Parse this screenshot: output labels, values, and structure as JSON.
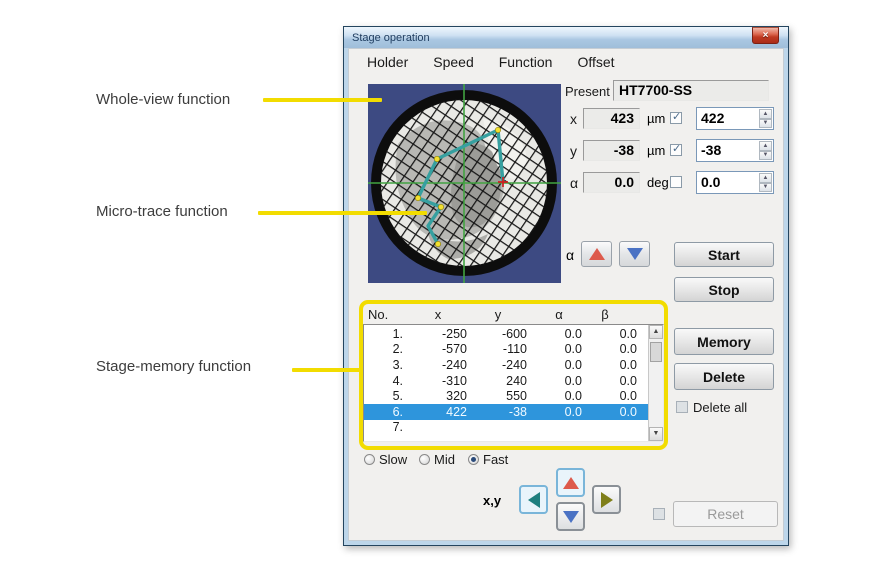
{
  "annotations": {
    "items": [
      {
        "label": "Whole-view function"
      },
      {
        "label": "Micro-trace function"
      },
      {
        "label": "Stage-memory function"
      }
    ]
  },
  "window": {
    "title": "Stage operation",
    "close_glyph": "×",
    "menu": {
      "items": [
        "Holder",
        "Speed",
        "Function",
        "Offset"
      ]
    },
    "present": {
      "label": "Present",
      "value": "HT7700-SS"
    },
    "position": {
      "rows": [
        {
          "axis": "x",
          "current": "423",
          "unit": "µm",
          "move_enabled": true,
          "target": "422"
        },
        {
          "axis": "y",
          "current": "-38",
          "unit": "µm",
          "move_enabled": true,
          "target": "-38"
        },
        {
          "axis": "α",
          "current": "0.0",
          "unit": "deg",
          "move_enabled": false,
          "target": "0.0"
        }
      ]
    },
    "alpha_jog": {
      "label": "α"
    },
    "actions": {
      "start": "Start",
      "stop": "Stop",
      "memory": "Memory",
      "delete": "Delete",
      "delete_all": "Delete all",
      "reset": "Reset"
    },
    "memory_table": {
      "headers": [
        "No.",
        "x",
        "y",
        "α",
        "β"
      ],
      "rows": [
        [
          "1.",
          "-250",
          "-600",
          "0.0",
          "0.0"
        ],
        [
          "2.",
          "-570",
          "-110",
          "0.0",
          "0.0"
        ],
        [
          "3.",
          "-240",
          "-240",
          "0.0",
          "0.0"
        ],
        [
          "4.",
          "-310",
          "240",
          "0.0",
          "0.0"
        ],
        [
          "5.",
          "320",
          "550",
          "0.0",
          "0.0"
        ],
        [
          "6.",
          "422",
          "-38",
          "0.0",
          "0.0"
        ],
        [
          "7.",
          "",
          "",
          "",
          ""
        ]
      ],
      "selected_row_index": 5
    },
    "speed": {
      "options": [
        "Slow",
        "Mid",
        "Fast"
      ],
      "selected": "Fast"
    },
    "xy_pad": {
      "label": "x,y"
    }
  },
  "colors": {
    "annotation_yellow": "#f2dc00",
    "selection_blue": "#2e95dc",
    "trace_teal": "#36a0a0",
    "crosshair_green": "#41a341",
    "grid_bg_navy": "#3d4a82",
    "jog_up_red": "#dd5a4c",
    "jog_down_blue": "#4a72c4",
    "pad_left_teal": "#1e7f7f",
    "pad_right_olive": "#7f7f1a",
    "close_red": "#c03a22"
  }
}
